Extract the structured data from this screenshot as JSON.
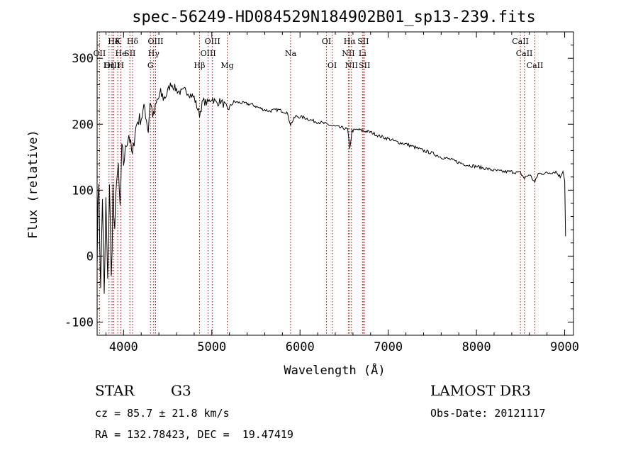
{
  "chart_data": {
    "type": "line",
    "title": "spec-56249-HD084529N184902B01_sp13-239.fits",
    "xlabel": "Wavelength (Å)",
    "ylabel": "Flux (relative)",
    "xlim": [
      3700,
      9100
    ],
    "ylim": [
      -120,
      340
    ],
    "xticks": [
      4000,
      5000,
      6000,
      7000,
      8000,
      9000
    ],
    "yticks": [
      -100,
      0,
      100,
      200,
      300
    ],
    "grid": false,
    "line_color": "#000000",
    "marker_color": "#c00000",
    "series": [
      {
        "x": [
          3700,
          3720,
          3740,
          3760,
          3780,
          3800,
          3820,
          3840,
          3860,
          3880,
          3900,
          3920,
          3940,
          3960,
          3980,
          4000,
          4030,
          4060,
          4101,
          4130,
          4160,
          4200,
          4240,
          4280,
          4300,
          4340,
          4380,
          4420,
          4460,
          4500,
          4540,
          4580,
          4620,
          4660,
          4700,
          4760,
          4800,
          4861,
          4900,
          4950,
          5000,
          5050,
          5100,
          5150,
          5175,
          5250,
          5350,
          5450,
          5550,
          5650,
          5750,
          5850,
          5893,
          5950,
          6050,
          6150,
          6250,
          6350,
          6450,
          6500,
          6540,
          6563,
          6590,
          6650,
          6720,
          6800,
          6900,
          7000,
          7100,
          7200,
          7300,
          7400,
          7500,
          7600,
          7700,
          7800,
          7900,
          8000,
          8100,
          8200,
          8300,
          8400,
          8500,
          8542,
          8600,
          8662,
          8700,
          8800,
          8900,
          8950,
          8980,
          9000,
          9010
        ],
        "y": [
          10,
          120,
          -60,
          95,
          -70,
          80,
          -50,
          115,
          -40,
          100,
          20,
          130,
          120,
          70,
          150,
          140,
          170,
          185,
          150,
          190,
          205,
          210,
          225,
          190,
          235,
          210,
          235,
          245,
          240,
          250,
          262,
          255,
          250,
          248,
          252,
          245,
          240,
          215,
          235,
          232,
          240,
          232,
          235,
          228,
          222,
          234,
          232,
          230,
          224,
          220,
          222,
          218,
          200,
          212,
          210,
          205,
          202,
          198,
          195,
          194,
          192,
          162,
          190,
          192,
          190,
          188,
          182,
          178,
          173,
          170,
          165,
          160,
          156,
          150,
          147,
          142,
          138,
          136,
          133,
          130,
          128,
          128,
          126,
          118,
          124,
          112,
          125,
          126,
          128,
          120,
          130,
          115,
          30
        ]
      }
    ],
    "lines": [
      {
        "name": "Hδ",
        "x": 3889,
        "row": 0
      },
      {
        "name": "K",
        "x": 3934,
        "row": 0
      },
      {
        "name": "Hδ",
        "x": 4102,
        "row": 0
      },
      {
        "name": "OIII",
        "x": 4363,
        "row": 0
      },
      {
        "name": "OIII",
        "x": 5007,
        "row": 0
      },
      {
        "name": "OI",
        "x": 6300,
        "row": 0
      },
      {
        "name": "Hα",
        "x": 6563,
        "row": 0
      },
      {
        "name": "SII",
        "x": 6716,
        "row": 0
      },
      {
        "name": "CaII",
        "x": 8498,
        "row": 0
      },
      {
        "name": "OII",
        "x": 3727,
        "row": 1
      },
      {
        "name": "He",
        "x": 3970,
        "row": 1
      },
      {
        "name": "SII",
        "x": 4072,
        "row": 1
      },
      {
        "name": "Hγ",
        "x": 4341,
        "row": 1
      },
      {
        "name": "OIII",
        "x": 4959,
        "row": 1
      },
      {
        "name": "Na",
        "x": 5893,
        "row": 1
      },
      {
        "name": "NII",
        "x": 6548,
        "row": 1
      },
      {
        "name": "Li",
        "x": 6708,
        "row": 1
      },
      {
        "name": "CaII",
        "x": 8542,
        "row": 1
      },
      {
        "name": "OIII",
        "x": 3869,
        "row": 2
      },
      {
        "name": "Hη",
        "x": 3835,
        "row": 2
      },
      {
        "name": "H",
        "x": 3968,
        "row": 2
      },
      {
        "name": "G",
        "x": 4305,
        "row": 2
      },
      {
        "name": "Hβ",
        "x": 4861,
        "row": 2
      },
      {
        "name": "Mg",
        "x": 5175,
        "row": 2
      },
      {
        "name": "OI",
        "x": 6364,
        "row": 2
      },
      {
        "name": "NII",
        "x": 6583,
        "row": 2
      },
      {
        "name": "SII",
        "x": 6731,
        "row": 2
      },
      {
        "name": "CaII",
        "x": 8662,
        "row": 2
      }
    ]
  },
  "info": {
    "class": "STAR",
    "subclass": "G3",
    "survey": "LAMOST DR3",
    "cz": "cz = 85.7 ± 21.8 km/s",
    "obs_date": "Obs-Date: 20121117",
    "coords": "RA = 132.78423, DEC =  19.47419"
  }
}
